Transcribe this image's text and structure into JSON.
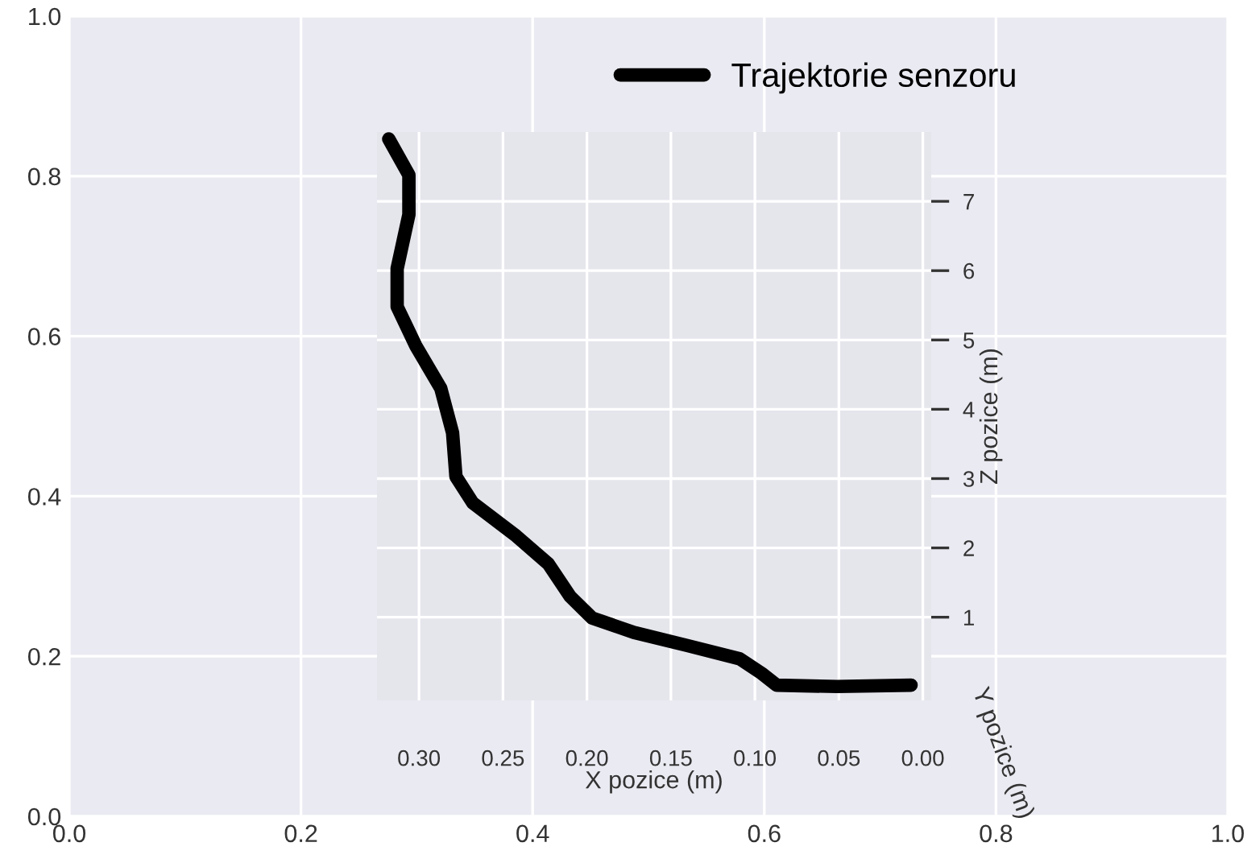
{
  "chart_data": [
    {
      "type": "line",
      "xlim": [
        0,
        1
      ],
      "ylim": [
        0,
        1
      ],
      "xticks": [
        {
          "value": 0,
          "label": "0.0"
        },
        0.2,
        0.4,
        0.6,
        0.8,
        {
          "value": 1,
          "label": "1.0"
        }
      ],
      "yticks": [
        {
          "value": 0,
          "label": "0.0"
        },
        0.2,
        0.4,
        0.6,
        0.8,
        {
          "value": 1,
          "label": "1.0"
        }
      ],
      "grid": true
    },
    {
      "type": "line",
      "xlabel": "X pozice (m)",
      "ylabel": "Z pozice (m)",
      "annotations": [
        "Y pozice (m)"
      ],
      "xlim": [
        0.325,
        -0.005
      ],
      "ylim": [
        -0.2,
        8.0
      ],
      "xticks": [
        {
          "value": 0.3,
          "label": "0.30"
        },
        0.25,
        {
          "value": 0.2,
          "label": "0.20"
        },
        0.15,
        {
          "value": 0.1,
          "label": "0.10"
        },
        0.05,
        {
          "value": 0,
          "label": "0.00"
        }
      ],
      "yticks": [
        1,
        2,
        3,
        4,
        5,
        6,
        7
      ],
      "grid": true,
      "legend": "top right",
      "series": [
        {
          "name": "Trajektorie senzoru",
          "color": "#000000",
          "x": [
            0.318,
            0.306,
            0.306,
            0.313,
            0.313,
            0.302,
            0.287,
            0.28,
            0.278,
            0.268,
            0.242,
            0.223,
            0.21,
            0.197,
            0.172,
            0.14,
            0.109,
            0.096,
            0.087,
            0.051,
            0.007
          ],
          "values": [
            7.9,
            7.38,
            6.81,
            6.03,
            5.48,
            4.92,
            4.3,
            3.66,
            3.03,
            2.65,
            2.17,
            1.77,
            1.3,
            0.99,
            0.78,
            0.59,
            0.4,
            0.19,
            0.02,
            0.0,
            0.02
          ]
        }
      ]
    }
  ]
}
